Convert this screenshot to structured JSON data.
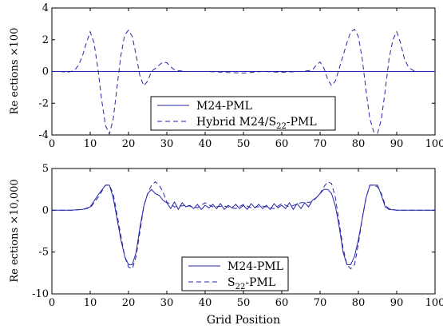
{
  "chart_data": [
    {
      "type": "line",
      "ylabel": "Re ections ×100",
      "xlabel": "",
      "xlim": [
        0,
        100
      ],
      "ylim": [
        -4,
        4
      ],
      "xticks": [
        0,
        10,
        20,
        30,
        40,
        50,
        60,
        70,
        80,
        90,
        100
      ],
      "yticks": [
        -4,
        -2,
        0,
        2,
        4
      ],
      "legend_position": "bottom-center",
      "series": [
        {
          "name": "M24-PML",
          "style": "solid",
          "x": [
            0,
            10,
            20,
            30,
            40,
            50,
            60,
            70,
            80,
            90,
            100
          ],
          "y": [
            0,
            0,
            0,
            0,
            0,
            0,
            0,
            0,
            0,
            0,
            0
          ]
        },
        {
          "name": "Hybrid M24/S22-PML",
          "style": "dashed",
          "x": [
            0,
            2,
            4,
            5,
            6,
            7,
            8,
            9,
            10,
            11,
            12,
            13,
            14,
            15,
            16,
            17,
            18,
            19,
            20,
            21,
            22,
            23,
            24,
            25,
            26,
            27,
            28,
            29,
            30,
            31,
            32,
            33,
            35,
            40,
            45,
            50,
            55,
            60,
            65,
            67,
            68,
            69,
            70,
            71,
            72,
            73,
            74,
            75,
            76,
            77,
            78,
            79,
            80,
            81,
            82,
            83,
            84,
            85,
            86,
            87,
            88,
            89,
            90,
            91,
            92,
            93,
            94,
            95,
            96,
            98,
            100
          ],
          "y": [
            0,
            0,
            -0.05,
            0,
            0.1,
            0.4,
            1.0,
            1.8,
            2.5,
            1.8,
            0.2,
            -1.8,
            -3.4,
            -3.95,
            -3.0,
            -1.0,
            1.0,
            2.3,
            2.6,
            2.2,
            1.0,
            -0.3,
            -0.9,
            -0.6,
            0.0,
            0.2,
            0.4,
            0.6,
            0.55,
            0.3,
            0.1,
            0.05,
            0.0,
            0.0,
            -0.05,
            -0.1,
            0.0,
            -0.05,
            0.0,
            0.05,
            0.1,
            0.4,
            0.6,
            0.2,
            -0.5,
            -0.9,
            -0.6,
            0.2,
            1.0,
            1.8,
            2.5,
            2.65,
            2.2,
            0.8,
            -1.2,
            -3.0,
            -3.8,
            -3.9,
            -3.0,
            -1.2,
            0.8,
            2.0,
            2.5,
            1.8,
            0.8,
            0.3,
            0.1,
            0.0,
            0.0,
            0.0,
            0.0
          ]
        }
      ]
    },
    {
      "type": "line",
      "ylabel": "Re ections ×10,000",
      "xlabel": "Grid Position",
      "xlim": [
        0,
        100
      ],
      "ylim": [
        -10,
        5
      ],
      "xticks": [
        0,
        10,
        20,
        30,
        40,
        50,
        60,
        70,
        80,
        90,
        100
      ],
      "yticks": [
        -10,
        -5,
        0,
        5
      ],
      "legend_position": "bottom-center",
      "series": [
        {
          "name": "M24-PML",
          "style": "solid",
          "x": [
            0,
            5,
            8,
            10,
            12,
            14,
            15,
            16,
            17,
            18,
            19,
            20,
            21,
            22,
            23,
            24,
            25,
            26,
            27,
            28,
            29,
            30,
            31,
            32,
            33,
            34,
            35,
            36,
            37,
            38,
            39,
            40,
            41,
            42,
            43,
            44,
            45,
            46,
            47,
            48,
            49,
            50,
            51,
            52,
            53,
            54,
            55,
            56,
            57,
            58,
            59,
            60,
            61,
            62,
            63,
            64,
            65,
            66,
            67,
            68,
            69,
            70,
            71,
            72,
            73,
            74,
            75,
            76,
            77,
            78,
            79,
            80,
            81,
            82,
            83,
            84,
            85,
            86,
            87,
            88,
            90,
            92,
            95,
            100
          ],
          "y": [
            0,
            0,
            0.1,
            0.4,
            1.8,
            3.0,
            3.0,
            1.5,
            -1.0,
            -3.5,
            -5.5,
            -6.5,
            -6.5,
            -5.0,
            -2.0,
            0.5,
            2.0,
            2.5,
            2.0,
            1.8,
            1.2,
            0.9,
            0.2,
            1.0,
            0.1,
            0.9,
            0.4,
            0.6,
            0.2,
            0.7,
            0.1,
            0.6,
            0.3,
            0.7,
            0.2,
            0.8,
            0.1,
            0.6,
            0.3,
            0.7,
            0.2,
            0.6,
            0.1,
            0.8,
            0.3,
            0.7,
            0.2,
            0.6,
            0.1,
            0.8,
            0.3,
            0.6,
            0.2,
            0.9,
            0.1,
            0.8,
            0.2,
            0.9,
            0.4,
            1.2,
            1.5,
            2.0,
            2.5,
            2.5,
            2.0,
            0.5,
            -2.0,
            -5.0,
            -6.5,
            -6.5,
            -5.5,
            -3.5,
            -1.0,
            1.5,
            3.0,
            3.0,
            3.0,
            1.8,
            0.4,
            0.1,
            0,
            0,
            0,
            0
          ]
        },
        {
          "name": "S22-PML",
          "style": "dashed",
          "x": [
            0,
            5,
            8,
            10,
            12,
            14,
            15,
            16,
            17,
            18,
            19,
            20,
            21,
            22,
            23,
            24,
            25,
            26,
            27,
            28,
            29,
            30,
            32,
            35,
            38,
            40,
            42,
            45,
            48,
            50,
            52,
            55,
            58,
            60,
            62,
            65,
            68,
            70,
            71,
            72,
            73,
            74,
            75,
            76,
            77,
            78,
            79,
            80,
            81,
            82,
            83,
            84,
            85,
            86,
            87,
            88,
            90,
            92,
            95,
            100
          ],
          "y": [
            0,
            0,
            0.1,
            0.3,
            1.5,
            3.0,
            3.0,
            2.0,
            -0.5,
            -3.0,
            -5.5,
            -6.8,
            -7.0,
            -5.5,
            -2.5,
            0.5,
            2.0,
            3.0,
            3.4,
            3.0,
            2.2,
            1.0,
            0.4,
            0.6,
            0.3,
            0.9,
            0.4,
            0.5,
            0.2,
            0.7,
            0.3,
            0.5,
            0.2,
            0.8,
            0.4,
            0.9,
            1.0,
            2.0,
            2.8,
            3.4,
            3.2,
            1.5,
            -1.5,
            -4.5,
            -6.5,
            -7.0,
            -6.5,
            -4.0,
            -1.0,
            1.5,
            3.0,
            3.0,
            2.8,
            2.0,
            0.6,
            0.2,
            0,
            0,
            0,
            0
          ]
        }
      ]
    }
  ]
}
